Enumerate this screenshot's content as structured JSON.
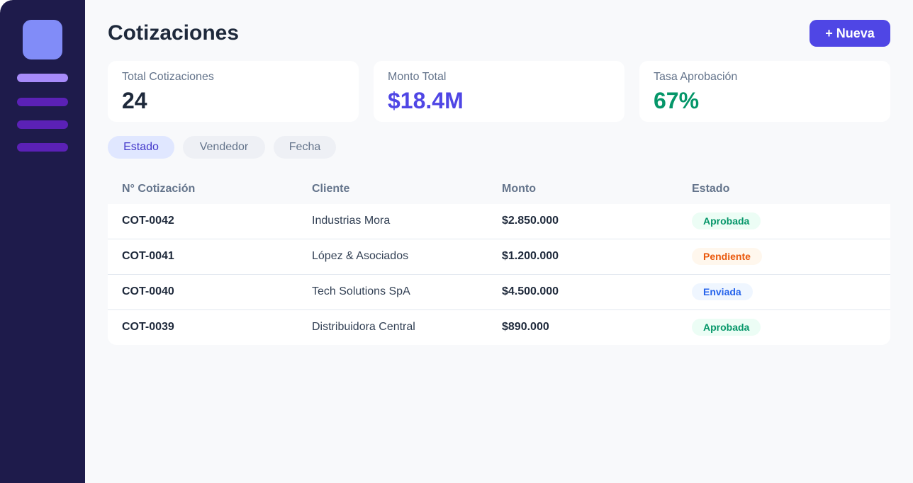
{
  "header": {
    "title": "Cotizaciones",
    "button": "+ Nueva"
  },
  "stats": [
    {
      "label": "Total Cotizaciones",
      "value": "24"
    },
    {
      "label": "Monto Total",
      "value": "$18.4M"
    },
    {
      "label": "Tasa Aprobación",
      "value": "67%"
    }
  ],
  "filters": [
    "Estado",
    "Vendedor",
    "Fecha"
  ],
  "table": {
    "columns": [
      "N° Cotización",
      "Cliente",
      "Monto",
      "Estado"
    ],
    "rows": [
      [
        "COT-0042",
        "Industrias Mora",
        "$2.850.000",
        "Aprobada"
      ],
      [
        "COT-0041",
        "López & Asociados",
        "$1.200.000",
        "Pendiente"
      ],
      [
        "COT-0040",
        "Tech Solutions SpA",
        "$4.500.000",
        "Enviada"
      ],
      [
        "COT-0039",
        "Distribuidora Central",
        "$890.000",
        "Aprobada"
      ]
    ]
  }
}
